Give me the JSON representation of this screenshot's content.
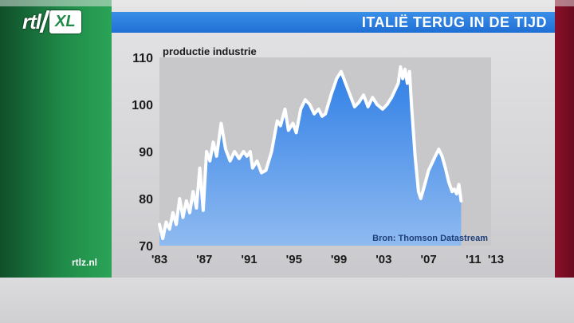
{
  "header": {
    "logo_text": "rtl",
    "logo_badge": "XL",
    "title": "ITALIË TERUG IN DE TIJD"
  },
  "footer": {
    "site": "rtlz.nl"
  },
  "colors": {
    "title_bar": "#2a7fe0",
    "area_fill": "#4a8fe8",
    "line": "#ffffff",
    "left_panel": "#1f8a48",
    "right_panel": "#7a0d22"
  },
  "chart_data": {
    "type": "area",
    "title": "productie industrie",
    "source": "Bron: Thomson Datastream",
    "ylim": [
      70,
      110
    ],
    "xlim": [
      1983,
      2013
    ],
    "yticks": [
      "70",
      "80",
      "90",
      "100",
      "110"
    ],
    "xticks": [
      {
        "value": 1983,
        "label": "'83"
      },
      {
        "value": 1987,
        "label": "'87"
      },
      {
        "value": 1991,
        "label": "'91"
      },
      {
        "value": 1995,
        "label": "'95"
      },
      {
        "value": 1999,
        "label": "'99"
      },
      {
        "value": 2003,
        "label": "'03"
      },
      {
        "value": 2007,
        "label": "'07"
      },
      {
        "value": 2011,
        "label": "'11"
      },
      {
        "value": 2013,
        "label": "'13"
      }
    ],
    "grid": false,
    "series": [
      {
        "points": [
          [
            1983.0,
            74.5
          ],
          [
            1983.3,
            71.5
          ],
          [
            1983.6,
            75
          ],
          [
            1983.9,
            73.5
          ],
          [
            1984.2,
            77
          ],
          [
            1984.5,
            74.5
          ],
          [
            1984.8,
            80
          ],
          [
            1985.1,
            76
          ],
          [
            1985.4,
            79.5
          ],
          [
            1985.7,
            77
          ],
          [
            1986.0,
            81.5
          ],
          [
            1986.3,
            78
          ],
          [
            1986.6,
            86.5
          ],
          [
            1986.9,
            77.5
          ],
          [
            1987.2,
            90
          ],
          [
            1987.5,
            88
          ],
          [
            1987.8,
            92
          ],
          [
            1988.1,
            89
          ],
          [
            1988.5,
            96
          ],
          [
            1988.9,
            90.5
          ],
          [
            1989.3,
            88
          ],
          [
            1989.7,
            90
          ],
          [
            1990.1,
            88.5
          ],
          [
            1990.5,
            90
          ],
          [
            1990.8,
            89
          ],
          [
            1991.1,
            90
          ],
          [
            1991.3,
            86.5
          ],
          [
            1991.7,
            88
          ],
          [
            1992.1,
            85.5
          ],
          [
            1992.5,
            86
          ],
          [
            1993.0,
            90
          ],
          [
            1993.5,
            96.5
          ],
          [
            1993.8,
            95.5
          ],
          [
            1994.2,
            99
          ],
          [
            1994.5,
            94.5
          ],
          [
            1994.9,
            96
          ],
          [
            1995.2,
            94
          ],
          [
            1995.6,
            99
          ],
          [
            1996.0,
            101
          ],
          [
            1996.4,
            100
          ],
          [
            1996.8,
            98
          ],
          [
            1997.2,
            99
          ],
          [
            1997.5,
            97.5
          ],
          [
            1997.8,
            98
          ],
          [
            1998.3,
            102
          ],
          [
            1998.8,
            105.5
          ],
          [
            1999.2,
            107
          ],
          [
            1999.6,
            104.5
          ],
          [
            2000.0,
            102
          ],
          [
            2000.4,
            99.5
          ],
          [
            2000.8,
            100.5
          ],
          [
            2001.2,
            102
          ],
          [
            2001.6,
            99.5
          ],
          [
            2002.0,
            101.5
          ],
          [
            2002.4,
            100
          ],
          [
            2002.9,
            99
          ],
          [
            2003.3,
            100
          ],
          [
            2003.7,
            101.5
          ],
          [
            2004.1,
            103.5
          ],
          [
            2004.3,
            104.5
          ],
          [
            2004.5,
            108
          ],
          [
            2004.7,
            105.5
          ],
          [
            2004.9,
            107.5
          ],
          [
            2005.1,
            104.5
          ],
          [
            2005.3,
            107
          ],
          [
            2005.5,
            99
          ],
          [
            2005.8,
            89
          ],
          [
            2006.1,
            81.5
          ],
          [
            2006.3,
            80
          ],
          [
            2006.6,
            82.5
          ],
          [
            2007.0,
            86
          ],
          [
            2007.3,
            87.5
          ],
          [
            2007.6,
            89
          ],
          [
            2007.9,
            90.5
          ],
          [
            2008.2,
            89
          ],
          [
            2008.5,
            86.5
          ],
          [
            2008.8,
            83.5
          ],
          [
            2009.1,
            81.5
          ],
          [
            2009.3,
            82
          ],
          [
            2009.5,
            81
          ],
          [
            2009.7,
            83
          ],
          [
            2009.9,
            79.5
          ]
        ]
      }
    ]
  }
}
